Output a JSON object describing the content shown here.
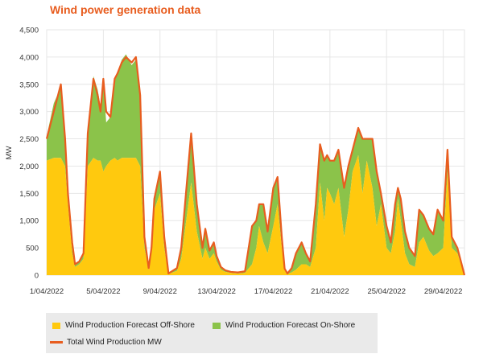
{
  "page": {
    "title": "Wind power generation data"
  },
  "chart_data": {
    "type": "area",
    "title": "Wind power generation data",
    "xlabel": "",
    "ylabel": "MW",
    "ylim": [
      0,
      4500
    ],
    "yticks": [
      0,
      500,
      1000,
      1500,
      2000,
      2500,
      3000,
      3500,
      4000,
      4500
    ],
    "ytick_labels": [
      "0",
      "500",
      "1,000",
      "1,500",
      "2,000",
      "2,500",
      "3,000",
      "3,500",
      "4,000",
      "4,500"
    ],
    "xticks": [
      "1/04/2022",
      "5/04/2022",
      "9/04/2022",
      "13/04/2022",
      "17/04/2022",
      "21/04/2022",
      "25/04/2022",
      "29/04/2022"
    ],
    "xtick_day": [
      1,
      5,
      9,
      13,
      17,
      21,
      25,
      29
    ],
    "xlim_day": [
      1,
      30.5
    ],
    "grid": true,
    "legend_position": "bottom",
    "colors": {
      "offshore": "#ffc90e",
      "onshore": "#8bc34a",
      "total": "#e85d1f",
      "title": "#e85d1f",
      "legend_bg": "#eaeaea"
    },
    "x": [
      1.0,
      1.5,
      2.0,
      2.3,
      2.5,
      2.8,
      3.0,
      3.3,
      3.6,
      3.9,
      4.3,
      4.6,
      4.8,
      5.0,
      5.2,
      5.5,
      5.8,
      6.0,
      6.3,
      6.6,
      7.0,
      7.3,
      7.6,
      7.9,
      8.2,
      8.4,
      8.6,
      9.0,
      9.3,
      9.6,
      9.9,
      10.2,
      10.5,
      10.8,
      11.2,
      11.6,
      12.0,
      12.2,
      12.5,
      12.8,
      13.0,
      13.3,
      13.6,
      14.0,
      14.5,
      15.0,
      15.5,
      15.8,
      16.0,
      16.3,
      16.6,
      17.0,
      17.3,
      17.6,
      17.8,
      18.0,
      18.3,
      18.6,
      19.0,
      19.3,
      19.6,
      20.0,
      20.3,
      20.6,
      20.8,
      21.0,
      21.3,
      21.6,
      22.0,
      22.3,
      22.6,
      23.0,
      23.3,
      23.6,
      24.0,
      24.3,
      24.6,
      25.0,
      25.3,
      25.6,
      25.8,
      26.0,
      26.3,
      26.6,
      27.0,
      27.3,
      27.6,
      28.0,
      28.3,
      28.6,
      29.0,
      29.3,
      29.6,
      30.0,
      30.5
    ],
    "series": [
      {
        "name": "Wind Production Forecast Off-Shore",
        "values": [
          2100,
          2150,
          2150,
          2000,
          1300,
          400,
          150,
          200,
          300,
          2000,
          2150,
          2100,
          2100,
          1900,
          2000,
          2100,
          2150,
          2100,
          2150,
          2150,
          2150,
          2150,
          2000,
          500,
          100,
          400,
          1200,
          1500,
          500,
          20,
          50,
          80,
          300,
          900,
          1700,
          800,
          300,
          500,
          300,
          400,
          250,
          100,
          60,
          40,
          30,
          40,
          200,
          500,
          900,
          600,
          400,
          900,
          1300,
          500,
          100,
          20,
          50,
          100,
          200,
          200,
          150,
          500,
          1700,
          1000,
          1600,
          1500,
          1300,
          1600,
          700,
          1200,
          1900,
          2200,
          1500,
          2100,
          1600,
          900,
          1300,
          500,
          400,
          800,
          1400,
          1000,
          400,
          200,
          150,
          600,
          700,
          450,
          350,
          400,
          500,
          1900,
          500,
          400,
          0
        ]
      },
      {
        "name": "Wind Production Forecast On-Shore",
        "values": [
          450,
          1000,
          1300,
          600,
          300,
          100,
          50,
          50,
          100,
          500,
          1500,
          1300,
          1000,
          1700,
          800,
          800,
          1400,
          1600,
          1800,
          1900,
          1700,
          1800,
          1300,
          200,
          20,
          100,
          200,
          400,
          200,
          10,
          30,
          50,
          200,
          500,
          900,
          500,
          200,
          350,
          150,
          200,
          100,
          50,
          30,
          20,
          20,
          30,
          700,
          500,
          400,
          700,
          400,
          700,
          500,
          200,
          20,
          10,
          80,
          300,
          400,
          200,
          100,
          800,
          700,
          1100,
          600,
          600,
          800,
          700,
          900,
          800,
          400,
          500,
          1000,
          400,
          900,
          1000,
          200,
          400,
          200,
          500,
          200,
          400,
          400,
          300,
          200,
          600,
          400,
          400,
          400,
          800,
          500,
          400,
          200,
          100,
          0
        ]
      },
      {
        "name": "Total Wind Production MW",
        "values": [
          2500,
          3000,
          3500,
          2500,
          1500,
          600,
          200,
          250,
          400,
          2600,
          3600,
          3300,
          3000,
          3600,
          3000,
          2900,
          3600,
          3700,
          3900,
          4000,
          3900,
          4000,
          3300,
          700,
          130,
          500,
          1400,
          1900,
          700,
          30,
          80,
          130,
          500,
          1400,
          2600,
          1300,
          500,
          850,
          450,
          600,
          350,
          150,
          90,
          60,
          50,
          70,
          900,
          1000,
          1300,
          1300,
          800,
          1600,
          1800,
          700,
          120,
          30,
          130,
          400,
          600,
          400,
          250,
          1300,
          2400,
          2100,
          2200,
          2100,
          2100,
          2300,
          1600,
          2000,
          2300,
          2700,
          2500,
          2500,
          2500,
          1900,
          1500,
          900,
          600,
          1300,
          1600,
          1400,
          800,
          500,
          350,
          1200,
          1100,
          850,
          750,
          1200,
          1000,
          2300,
          700,
          500,
          0
        ]
      }
    ]
  },
  "legend": {
    "offshore_label": "Wind Production Forecast Off-Shore",
    "onshore_label": "Wind Production Forecast On-Shore",
    "total_label": "Total Wind Production MW"
  }
}
